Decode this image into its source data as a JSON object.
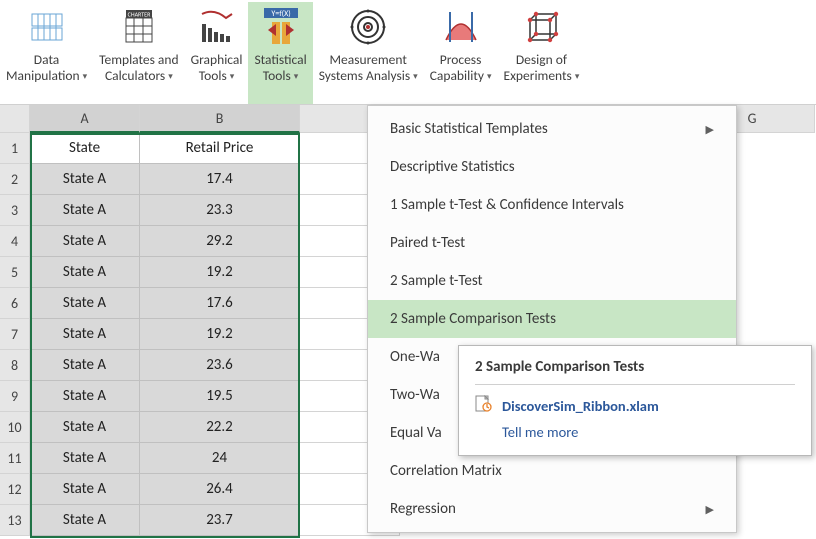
{
  "ribbon": {
    "groups": [
      {
        "id": "data-manip",
        "line1": "Data",
        "line2": "Manipulation",
        "has_caret": true,
        "active": false
      },
      {
        "id": "templates",
        "line1": "Templates and",
        "line2": "Calculators",
        "has_caret": true,
        "active": false
      },
      {
        "id": "graphical",
        "line1": "Graphical",
        "line2": "Tools",
        "has_caret": true,
        "active": false
      },
      {
        "id": "stat-tools",
        "line1": "Statistical",
        "line2": "Tools",
        "has_caret": true,
        "active": true
      },
      {
        "id": "msa",
        "line1": "Measurement",
        "line2": "Systems Analysis",
        "has_caret": true,
        "active": false
      },
      {
        "id": "capability",
        "line1": "Process",
        "line2": "Capability",
        "has_caret": true,
        "active": false
      },
      {
        "id": "doe",
        "line1": "Design of",
        "line2": "Experiments",
        "has_caret": true,
        "active": false
      }
    ],
    "charter_badge": "CHARTER",
    "stat_icon_text": "Y=f(X)"
  },
  "columns": [
    "A",
    "B"
  ],
  "far_column": "G",
  "table": {
    "headers": [
      "State",
      "Retail Price"
    ],
    "rows": [
      [
        "State A",
        "17.4"
      ],
      [
        "State A",
        "23.3"
      ],
      [
        "State A",
        "29.2"
      ],
      [
        "State A",
        "19.2"
      ],
      [
        "State A",
        "17.6"
      ],
      [
        "State A",
        "19.2"
      ],
      [
        "State A",
        "23.6"
      ],
      [
        "State A",
        "19.5"
      ],
      [
        "State A",
        "22.2"
      ],
      [
        "State A",
        "24"
      ],
      [
        "State A",
        "26.4"
      ],
      [
        "State A",
        "23.7"
      ]
    ]
  },
  "menu": {
    "items": [
      {
        "label": "Basic Statistical Templates",
        "submenu": true,
        "hover": false
      },
      {
        "label": "Descriptive Statistics",
        "submenu": false,
        "hover": false
      },
      {
        "label": "1 Sample t-Test & Confidence Intervals",
        "submenu": false,
        "hover": false
      },
      {
        "label": "Paired t-Test",
        "submenu": false,
        "hover": false
      },
      {
        "label": "2 Sample t-Test",
        "submenu": false,
        "hover": false
      },
      {
        "label": "2 Sample Comparison Tests",
        "submenu": false,
        "hover": true
      },
      {
        "label": "One-Wa",
        "submenu": false,
        "hover": false,
        "cut": true
      },
      {
        "label": "Two-Wa",
        "submenu": false,
        "hover": false,
        "cut": true
      },
      {
        "label": "Equal Va",
        "submenu": false,
        "hover": false,
        "cut": true
      },
      {
        "label": "Correlation Matrix",
        "submenu": false,
        "hover": false
      },
      {
        "label": "Regression",
        "submenu": true,
        "hover": false
      }
    ]
  },
  "tooltip": {
    "title": "2 Sample Comparison Tests",
    "file": "DiscoverSim_Ribbon.xlam",
    "tell_me": "Tell me more"
  },
  "styling": {
    "selection_color": "#217346",
    "hover_bg": "#c8e6c5",
    "grid_bg": "#d9d9d9",
    "header_bg": "#e6e6e6",
    "link_color": "#2b579a"
  }
}
